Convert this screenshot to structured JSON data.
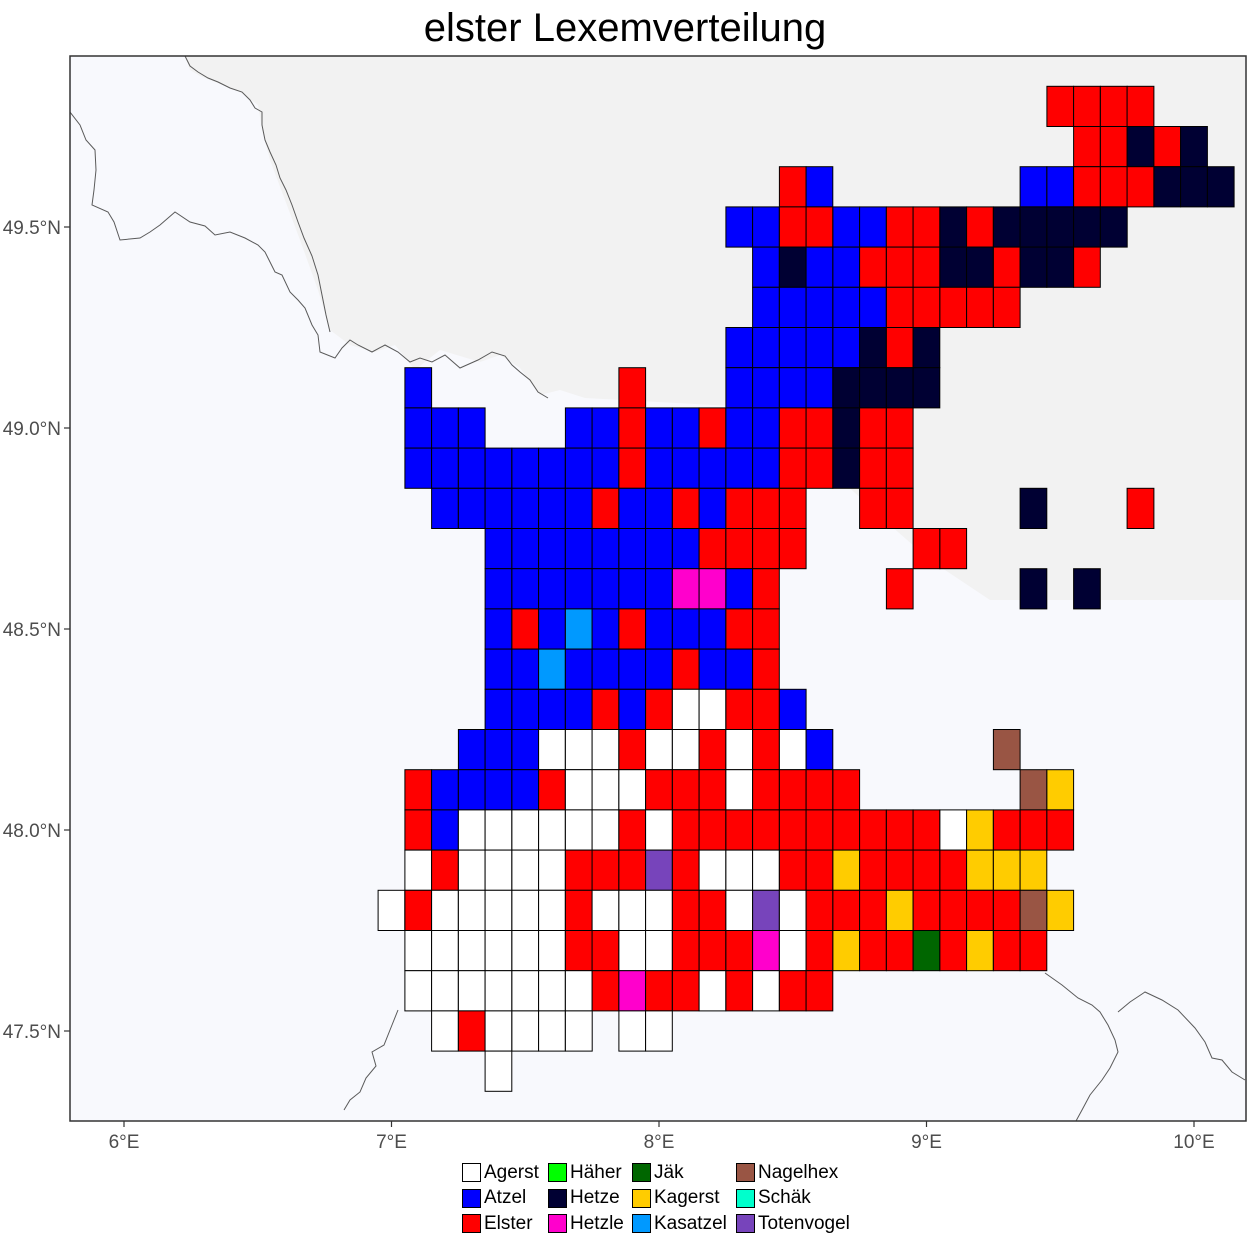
{
  "title": "elster Lexemverteilung",
  "chart_data": {
    "type": "map-grid",
    "x_ticks": [
      {
        "lon": 6,
        "label": "6°E"
      },
      {
        "lon": 7,
        "label": "7°E"
      },
      {
        "lon": 8,
        "label": "8°E"
      },
      {
        "lon": 9,
        "label": "9°E"
      },
      {
        "lon": 10,
        "label": "10°E"
      }
    ],
    "y_ticks": [
      {
        "lat": 49.5,
        "label": "49.5°N"
      },
      {
        "lat": 49.0,
        "label": "49.0°N"
      },
      {
        "lat": 48.5,
        "label": "48.5°N"
      },
      {
        "lat": 48.0,
        "label": "48.0°N"
      },
      {
        "lat": 47.5,
        "label": "47.5°N"
      }
    ],
    "xlim": [
      5.8,
      10.2
    ],
    "ylim": [
      47.28,
      49.92
    ],
    "cell_size": {
      "lon": 0.1,
      "lat": 0.1
    },
    "background": {
      "land_left": "#f8f9fd",
      "land_right": "#f2f2f2"
    },
    "legend": [
      {
        "key": "A",
        "label": "Agerst",
        "color": "#ffffff"
      },
      {
        "key": "B",
        "label": "Atzel",
        "color": "#0000ff"
      },
      {
        "key": "E",
        "label": "Elster",
        "color": "#ff0000"
      },
      {
        "key": "H",
        "label": "Häher",
        "color": "#00ff00"
      },
      {
        "key": "K",
        "label": "Hetze",
        "color": "#000033"
      },
      {
        "key": "M",
        "label": "Hetzle",
        "color": "#ff00cc"
      },
      {
        "key": "J",
        "label": "Jäk",
        "color": "#006600"
      },
      {
        "key": "Y",
        "label": "Kagerst",
        "color": "#ffcc00"
      },
      {
        "key": "C",
        "label": "Kasatzel",
        "color": "#0099ff"
      },
      {
        "key": "N",
        "label": "Nagelhex",
        "color": "#995544"
      },
      {
        "key": "S",
        "label": "Schäk",
        "color": "#00ffcc"
      },
      {
        "key": "V",
        "label": "Totenvogel",
        "color": "#7744bb"
      }
    ],
    "grid": {
      "origin_lon": 6.85,
      "top_lat": 49.85,
      "rows": [
        "..........................EEEE.....",
        "...........................EEKEK...",
        "................EB.......BBEEEKKK..",
        "..............BBEEBBEEKEKKKKK......",
        "...............BKBBEEEKKEKKE.......",
        "...............BBBBBEEEEE..........",
        "..............BBBBBKEK.............",
        "..B.......E...BBBBKKKK.............",
        "..BBB...BBEBBEBBEEKEE..............",
        "..BBBBBBBBEBBBBBEEKEE..............",
        "...BBBBBBEBBEBEEE..EE....K...E.....",
        ".....BBBBBBBBEEEE....EE............",
        ".....BBBBBBBMMBE....E....K.K.......",
        ".....BEBCBEBBBEE...................",
        ".....BBCBBBBEBBE...................",
        ".....BBBBEBEAAEEB..................",
        "....BBBAAAEAAEAEAB......N..........",
        "..EBBBBEAAAEEEAEEEE......NY........",
        "..EBAAAAAAEAEEEEEEEEEEAYEEE........",
        "..AEAAAAEEEVEAAAEEYEEEEYYY.........",
        ".AEAAAAAEAAAEEAVAEEEYEEEENY........",
        "..AAAAAAEEAAEEEMAEYEEJEYEE.........",
        "..AAAAAAAEMEEAEAEE.................",
        "...AEAAAA.AA......................",
        ".....A............................."
      ]
    }
  }
}
